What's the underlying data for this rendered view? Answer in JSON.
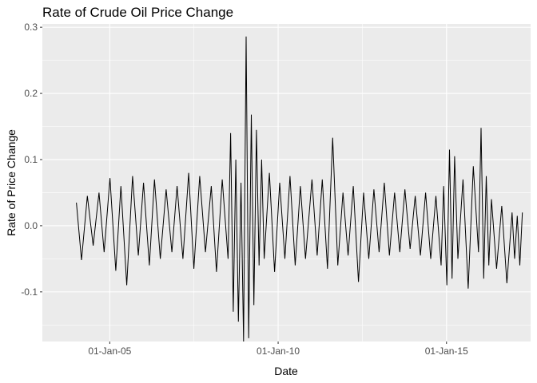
{
  "chart_data": {
    "type": "line",
    "title": "Rate of Crude Oil Price Change",
    "xlabel": "Date",
    "ylabel": "Rate of Price Change",
    "x_range": [
      "2003-01-01",
      "2017-07-01"
    ],
    "ylim": [
      -0.175,
      0.305
    ],
    "grid": true,
    "background": "#ebebeb",
    "line_color": "#000000",
    "x_ticks": [
      {
        "date": "2005-01-01",
        "label": "01-Jan-05"
      },
      {
        "date": "2010-01-01",
        "label": "01-Jan-10"
      },
      {
        "date": "2015-01-01",
        "label": "01-Jan-15"
      }
    ],
    "y_ticks": [
      {
        "value": -0.1,
        "label": "-0.1"
      },
      {
        "value": 0.0,
        "label": "0.0"
      },
      {
        "value": 0.1,
        "label": "0.1"
      },
      {
        "value": 0.2,
        "label": "0.2"
      },
      {
        "value": 0.3,
        "label": "0.3"
      }
    ],
    "series": [
      {
        "dates": [
          "2004-01-05",
          "2004-03-01",
          "2004-05-03",
          "2004-07-05",
          "2004-09-06",
          "2004-11-01",
          "2005-01-03",
          "2005-03-07",
          "2005-05-02",
          "2005-07-04",
          "2005-09-05",
          "2005-11-07",
          "2006-01-02",
          "2006-03-06",
          "2006-05-01",
          "2006-07-03",
          "2006-09-04",
          "2006-11-06",
          "2007-01-01",
          "2007-03-05",
          "2007-05-07",
          "2007-07-02",
          "2007-09-03",
          "2007-11-05",
          "2008-01-07",
          "2008-03-03",
          "2008-05-05",
          "2008-07-07",
          "2008-08-04",
          "2008-09-01",
          "2008-09-29",
          "2008-10-27",
          "2008-11-24",
          "2008-12-22",
          "2009-01-19",
          "2009-02-16",
          "2009-03-16",
          "2009-04-13",
          "2009-05-11",
          "2009-06-08",
          "2009-07-06",
          "2009-08-03",
          "2009-09-28",
          "2009-11-23",
          "2010-01-18",
          "2010-03-15",
          "2010-05-10",
          "2010-07-05",
          "2010-08-30",
          "2010-10-25",
          "2011-01-03",
          "2011-02-28",
          "2011-04-25",
          "2011-06-20",
          "2011-08-15",
          "2011-10-10",
          "2011-12-05",
          "2012-01-30",
          "2012-03-26",
          "2012-05-21",
          "2012-07-16",
          "2012-09-10",
          "2012-11-05",
          "2012-12-31",
          "2013-02-25",
          "2013-04-22",
          "2013-06-17",
          "2013-08-12",
          "2013-10-07",
          "2013-12-02",
          "2014-01-27",
          "2014-03-24",
          "2014-05-19",
          "2014-07-14",
          "2014-09-08",
          "2014-11-03",
          "2014-12-01",
          "2015-01-05",
          "2015-02-02",
          "2015-03-02",
          "2015-03-30",
          "2015-05-04",
          "2015-06-29",
          "2015-08-24",
          "2015-10-19",
          "2015-12-14",
          "2016-01-11",
          "2016-02-08",
          "2016-03-07",
          "2016-04-04",
          "2016-05-02",
          "2016-06-27",
          "2016-08-22",
          "2016-10-17",
          "2016-12-12",
          "2017-01-09",
          "2017-02-06",
          "2017-03-06",
          "2017-04-03"
        ],
        "values": [
          0.035,
          -0.052,
          0.045,
          -0.03,
          0.05,
          -0.04,
          0.072,
          -0.068,
          0.06,
          -0.09,
          0.075,
          -0.045,
          0.065,
          -0.06,
          0.07,
          -0.05,
          0.055,
          -0.04,
          0.06,
          -0.05,
          0.08,
          -0.065,
          0.075,
          -0.04,
          0.06,
          -0.07,
          0.07,
          -0.05,
          0.14,
          -0.13,
          0.1,
          -0.145,
          0.065,
          -0.175,
          0.286,
          -0.17,
          0.168,
          -0.12,
          0.145,
          -0.06,
          0.1,
          -0.05,
          0.08,
          -0.07,
          0.065,
          -0.05,
          0.075,
          -0.06,
          0.06,
          -0.05,
          0.07,
          -0.045,
          0.07,
          -0.065,
          0.133,
          -0.06,
          0.05,
          -0.045,
          0.06,
          -0.085,
          0.05,
          -0.05,
          0.055,
          -0.04,
          0.065,
          -0.045,
          0.05,
          -0.04,
          0.055,
          -0.035,
          0.045,
          -0.045,
          0.05,
          -0.05,
          0.045,
          -0.06,
          0.06,
          -0.09,
          0.115,
          -0.08,
          0.105,
          -0.05,
          0.07,
          -0.095,
          0.09,
          -0.04,
          0.148,
          -0.08,
          0.075,
          -0.06,
          0.04,
          -0.065,
          0.03,
          -0.087,
          0.02,
          -0.05,
          0.015,
          -0.06,
          0.02
        ]
      }
    ]
  }
}
